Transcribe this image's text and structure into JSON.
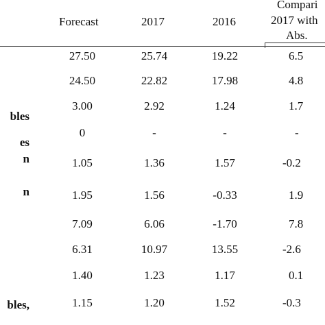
{
  "table": {
    "headers": {
      "forecast": "Forecast",
      "y2017": "2017",
      "y2016": "2016",
      "comparison_line1": "Compari",
      "comparison_line2": "2017 with",
      "comparison_line3": "Abs."
    },
    "row_labels": {
      "r3": "bles",
      "r4": "es",
      "r5": "n",
      "r6": "n",
      "r10": "bles,"
    },
    "rows": [
      {
        "forecast": "27.50",
        "y2017": "25.74",
        "y2016": "19.22",
        "abs": "6.5"
      },
      {
        "forecast": "24.50",
        "y2017": "22.82",
        "y2016": "17.98",
        "abs": "4.8"
      },
      {
        "forecast": "3.00",
        "y2017": "2.92",
        "y2016": "1.24",
        "abs": "1.7"
      },
      {
        "forecast": "0",
        "y2017": "-",
        "y2016": "-",
        "abs": "-"
      },
      {
        "forecast": "1.05",
        "y2017": "1.36",
        "y2016": "1.57",
        "abs": "-0.2"
      },
      {
        "forecast": "1.95",
        "y2017": "1.56",
        "y2016": "-0.33",
        "abs": "1.9"
      },
      {
        "forecast": "7.09",
        "y2017": "6.06",
        "y2016": "-1.70",
        "abs": "7.8"
      },
      {
        "forecast": "6.31",
        "y2017": "10.97",
        "y2016": "13.55",
        "abs": "-2.6"
      },
      {
        "forecast": "1.40",
        "y2017": "1.23",
        "y2016": "1.17",
        "abs": "0.1"
      },
      {
        "forecast": "1.15",
        "y2017": "1.20",
        "y2016": "1.52",
        "abs": "-0.3"
      }
    ]
  }
}
